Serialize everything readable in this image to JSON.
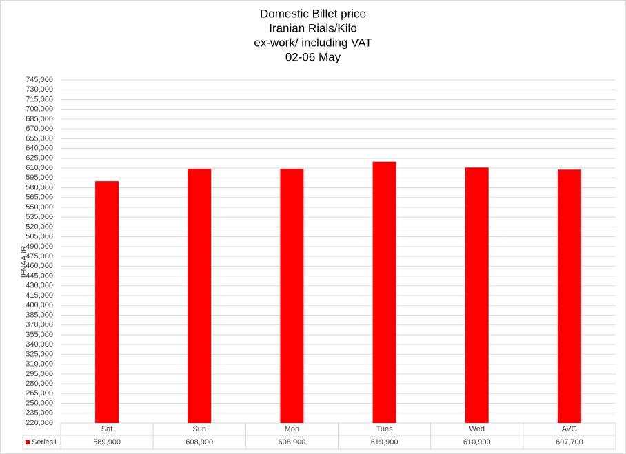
{
  "chart_data": {
    "type": "bar",
    "title_lines": [
      "Domestic Billet price",
      "Iranian Rials/Kilo",
      "ex-work/ including VAT",
      "02-06 May"
    ],
    "y_label": "IFNAA.IR",
    "categories": [
      "Sat",
      "Sun",
      "Mon",
      "Tues",
      "Wed",
      "AVG"
    ],
    "series": [
      {
        "name": "Series1",
        "color": "#ff0000",
        "values": [
          589900,
          608900,
          608900,
          619900,
          610900,
          607700
        ],
        "value_labels": [
          "589,900",
          "608,900",
          "608,900",
          "619,900",
          "610,900",
          "607,700"
        ]
      }
    ],
    "ylim": [
      220000,
      745000
    ],
    "yticks": [
      {
        "value": 220000,
        "label": "220,000"
      },
      {
        "value": 235000,
        "label": "235,000"
      },
      {
        "value": 250000,
        "label": "250,000"
      },
      {
        "value": 265000,
        "label": "265,000"
      },
      {
        "value": 280000,
        "label": "280,000"
      },
      {
        "value": 295000,
        "label": "295,000"
      },
      {
        "value": 310000,
        "label": "310,000"
      },
      {
        "value": 325000,
        "label": "325,000"
      },
      {
        "value": 340000,
        "label": "340,000"
      },
      {
        "value": 355000,
        "label": "355,000"
      },
      {
        "value": 370000,
        "label": "370,000"
      },
      {
        "value": 385000,
        "label": "385,000"
      },
      {
        "value": 400000,
        "label": "400,000"
      },
      {
        "value": 415000,
        "label": "415,000"
      },
      {
        "value": 430000,
        "label": "430,000"
      },
      {
        "value": 445000,
        "label": "445,000"
      },
      {
        "value": 460000,
        "label": "460,000"
      },
      {
        "value": 475000,
        "label": "475,000"
      },
      {
        "value": 490000,
        "label": "490,000"
      },
      {
        "value": 505000,
        "label": "505,000"
      },
      {
        "value": 520000,
        "label": "520,000"
      },
      {
        "value": 535000,
        "label": "535,000"
      },
      {
        "value": 550000,
        "label": "550,000"
      },
      {
        "value": 565000,
        "label": "565,000"
      },
      {
        "value": 580000,
        "label": "580,000"
      },
      {
        "value": 595000,
        "label": "595,000"
      },
      {
        "value": 610000,
        "label": "610,000"
      },
      {
        "value": 625000,
        "label": "625,000"
      },
      {
        "value": 640000,
        "label": "640,000"
      },
      {
        "value": 655000,
        "label": "655,000"
      },
      {
        "value": 670000,
        "label": "670,000"
      },
      {
        "value": 685000,
        "label": "685,000"
      },
      {
        "value": 700000,
        "label": "700,000"
      },
      {
        "value": 715000,
        "label": "715,000"
      },
      {
        "value": 730000,
        "label": "730,000"
      },
      {
        "value": 745000,
        "label": "745,000"
      }
    ],
    "grid": true
  }
}
